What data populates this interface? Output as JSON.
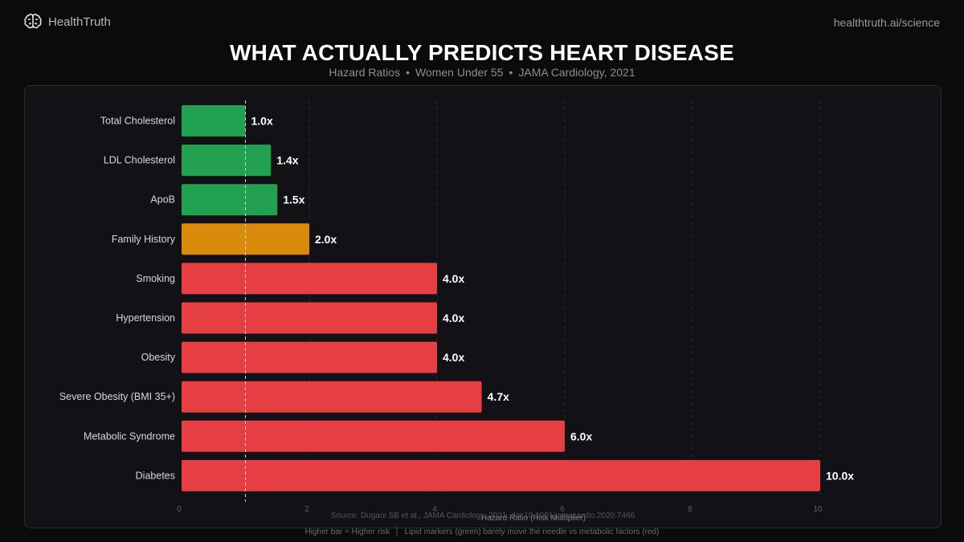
{
  "header": {
    "brand_name": "HealthTruth",
    "site_link": "healthtruth.ai/science"
  },
  "subtitle_parts": [
    "Hazard Ratios",
    "Women Under 55",
    "JAMA Cardiology, 2021"
  ],
  "subtitle_sep": "•",
  "footer": {
    "left": "Higher bar = Higher risk",
    "sep": "│",
    "right": "Lipid markers (green) barely move the needle vs metabolic factors (red)"
  },
  "colors": {
    "low": "#22a150",
    "moderate": "#db8b0b",
    "high": "#e53f43"
  },
  "chart_data": {
    "type": "bar",
    "orientation": "horizontal",
    "title": "WHAT ACTUALLY PREDICTS HEART DISEASE",
    "xlabel": "Hazard Ratio (Risk Multiplier)",
    "ylabel": "",
    "xlim": [
      0,
      10
    ],
    "xticks": [
      0,
      2,
      4,
      6,
      8,
      10
    ],
    "reference_line": 1,
    "grid": true,
    "categories": [
      "Total Cholesterol",
      "LDL Cholesterol",
      "ApoB",
      "Family History",
      "Smoking",
      "Hypertension",
      "Obesity",
      "Severe Obesity (BMI 35+)",
      "Metabolic Syndrome",
      "Diabetes"
    ],
    "values": [
      1.0,
      1.4,
      1.5,
      2.0,
      4.0,
      4.0,
      4.0,
      4.7,
      6.0,
      10.0
    ],
    "value_labels": [
      "1.0x",
      "1.4x",
      "1.5x",
      "2.0x",
      "4.0x",
      "4.0x",
      "4.0x",
      "4.7x",
      "6.0x",
      "10.0x"
    ],
    "risk_groups": [
      "low",
      "low",
      "low",
      "moderate",
      "high",
      "high",
      "high",
      "high",
      "high",
      "high"
    ],
    "source": "Source: Dugani SB et al., JAMA Cardiology, 2021, doi:10.1001/jamacardio.2020.7466"
  }
}
